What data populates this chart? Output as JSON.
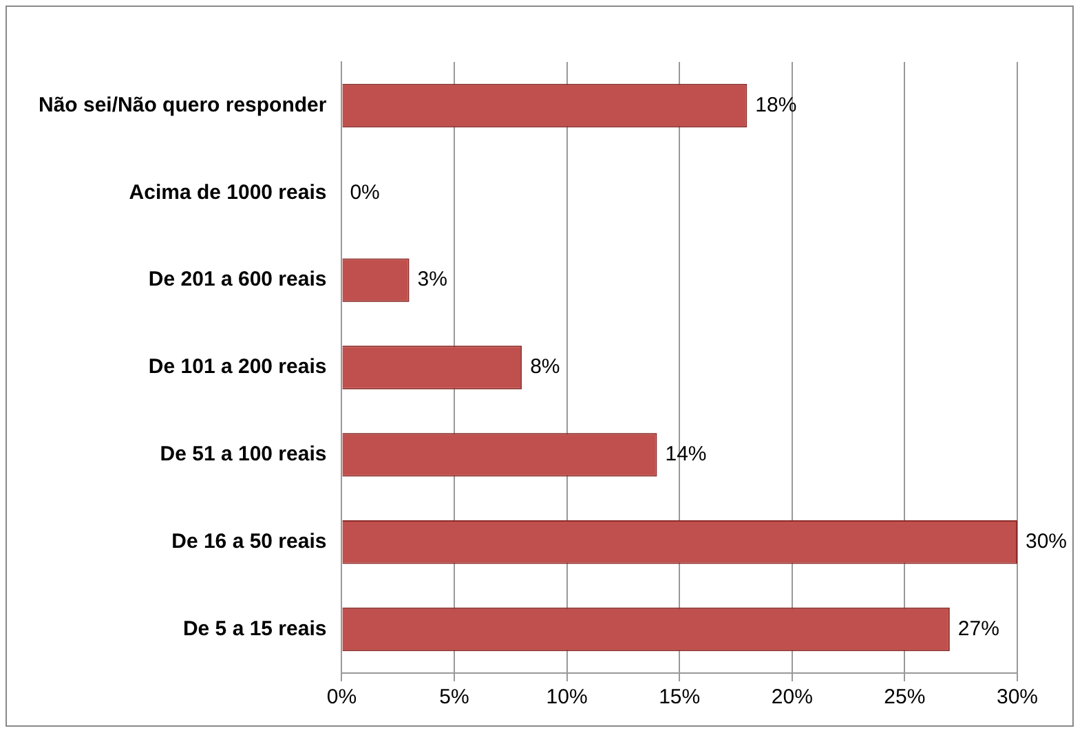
{
  "chart_data": {
    "type": "bar",
    "orientation": "horizontal",
    "categories": [
      "Não sei/Não quero responder",
      "Acima de 1000 reais",
      "De 201 a 600 reais",
      "De 101 a 200 reais",
      "De 51 a 100 reais",
      "De 16 a 50 reais",
      "De 5 a 15 reais"
    ],
    "values": [
      18,
      0,
      3,
      8,
      14,
      30,
      27
    ],
    "value_labels": [
      "18%",
      "0%",
      "3%",
      "8%",
      "14%",
      "30%",
      "27%"
    ],
    "color": "#c0504d",
    "xlim": [
      0,
      30
    ],
    "xticks": [
      {
        "value": 0,
        "label": "0%"
      },
      {
        "value": 5,
        "label": "5%"
      },
      {
        "value": 10,
        "label": "10%"
      },
      {
        "value": 15,
        "label": "15%"
      },
      {
        "value": 20,
        "label": "20%"
      },
      {
        "value": 25,
        "label": "25%"
      },
      {
        "value": 30,
        "label": "30%"
      }
    ],
    "grid": "x"
  }
}
